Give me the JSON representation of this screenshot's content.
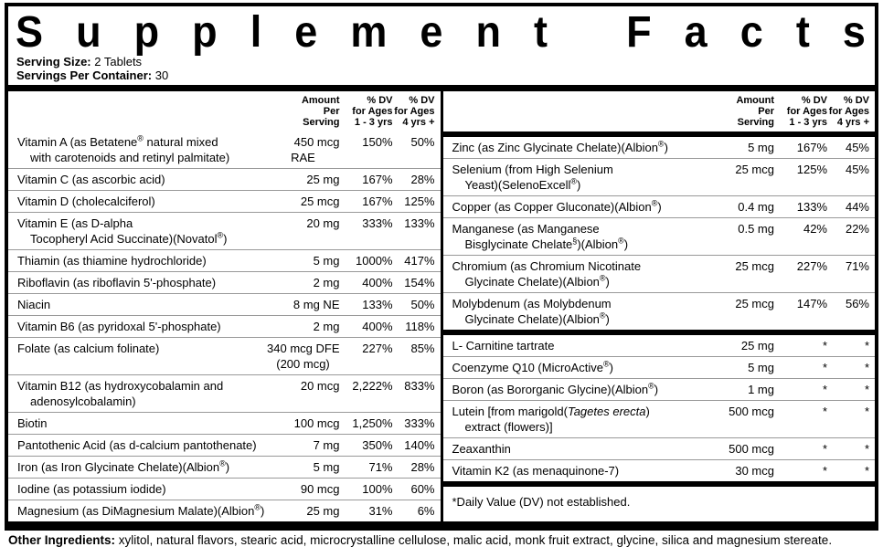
{
  "title": "Supplement Facts",
  "serving": {
    "size_label": "Serving Size:",
    "size_value": " 2 Tablets",
    "container_label": "Servings Per Container:",
    "container_value": " 30"
  },
  "columns_header": {
    "amount": "Amount\nPer\nServing",
    "dv1": "% DV\nfor Ages\n1 - 3  yrs",
    "dv2": "% DV\nfor Ages\n4 yrs +"
  },
  "left_rows": [
    {
      "name": "Vitamin A (as Betatene® natural mixed",
      "name2": "with carotenoids and retinyl palmitate)",
      "amount": "450 mcg",
      "amount2": "RAE",
      "dv1": "150%",
      "dv2": "50%"
    },
    {
      "name": "Vitamin C (as ascorbic acid)",
      "amount": "25 mg",
      "dv1": "167%",
      "dv2": "28%"
    },
    {
      "name": "Vitamin D (cholecalciferol)",
      "amount": "25 mcg",
      "dv1": "167%",
      "dv2": "125%"
    },
    {
      "name": "Vitamin E (as D-alpha",
      "name2": "Tocopheryl Acid Succinate)(Novatol®)",
      "amount": "20 mg",
      "dv1": "333%",
      "dv2": "133%"
    },
    {
      "name": "Thiamin (as thiamine hydrochloride)",
      "amount": "5 mg",
      "dv1": "1000%",
      "dv2": "417%"
    },
    {
      "name": "Riboflavin (as riboflavin 5'-phosphate)",
      "amount": "2 mg",
      "dv1": "400%",
      "dv2": "154%"
    },
    {
      "name": "Niacin",
      "amount": "8 mg NE",
      "dv1": "133%",
      "dv2": "50%"
    },
    {
      "name": "Vitamin B6 (as pyridoxal 5'-phosphate)",
      "amount": "2 mg",
      "dv1": "400%",
      "dv2": "118%"
    },
    {
      "name": "Folate (as calcium folinate)",
      "amount": "340 mcg DFE",
      "amount2": "(200 mcg)",
      "dv1": "227%",
      "dv2": "85%"
    },
    {
      "name": "Vitamin B12 (as hydroxycobalamin and",
      "name2": "adenosylcobalamin)",
      "amount": "20 mcg",
      "dv1": "2,222%",
      "dv2": "833%"
    },
    {
      "name": "Biotin",
      "amount": "100 mcg",
      "dv1": "1,250%",
      "dv2": "333%"
    },
    {
      "name": "Pantothenic Acid (as d-calcium pantothenate)",
      "amount": "7 mg",
      "dv1": "350%",
      "dv2": "140%"
    },
    {
      "name": "Iron (as Iron Glycinate Chelate)(Albion®)",
      "amount": "5 mg",
      "dv1": "71%",
      "dv2": "28%"
    },
    {
      "name": "Iodine (as potassium iodide)",
      "amount": "90 mcg",
      "dv1": "100%",
      "dv2": "60%"
    },
    {
      "name": "Magnesium (as DiMagnesium Malate)(Albion®)",
      "amount": "25 mg",
      "dv1": "31%",
      "dv2": "6%"
    }
  ],
  "right_rows_top": [
    {
      "name": "Zinc (as Zinc Glycinate Chelate)(Albion®)",
      "amount": "5 mg",
      "dv1": "167%",
      "dv2": "45%"
    },
    {
      "name": "Selenium (from High Selenium",
      "name2": "Yeast)(SelenoExcell®)",
      "amount": "25 mcg",
      "dv1": "125%",
      "dv2": "45%"
    },
    {
      "name": "Copper (as Copper Gluconate)(Albion®)",
      "amount": "0.4 mg",
      "dv1": "133%",
      "dv2": "44%"
    },
    {
      "name": "Manganese (as Manganese",
      "name2": "Bisglycinate Chelate§)(Albion®)",
      "amount": "0.5 mg",
      "dv1": "42%",
      "dv2": "22%"
    },
    {
      "name": "Chromium (as Chromium Nicotinate",
      "name2": "Glycinate Chelate)(Albion®)",
      "amount": "25 mcg",
      "dv1": "227%",
      "dv2": "71%"
    },
    {
      "name": "Molybdenum (as Molybdenum",
      "name2": "Glycinate Chelate)(Albion®)",
      "amount": "25 mcg",
      "dv1": "147%",
      "dv2": "56%"
    }
  ],
  "right_rows_bottom": [
    {
      "name": "L- Carnitine tartrate",
      "amount": "25 mg",
      "dv1": "*",
      "dv2": "*"
    },
    {
      "name": "Coenzyme Q10 (MicroActive®)",
      "amount": "5 mg",
      "dv1": "*",
      "dv2": "*"
    },
    {
      "name": "Boron (as Bororganic Glycine)(Albion®)",
      "amount": "1 mg",
      "dv1": "*",
      "dv2": "*"
    },
    {
      "name": "Lutein [from marigold(Tagetes erecta)",
      "italic": "Tagetes erecta",
      "name2": "extract (flowers)]",
      "amount": "500 mcg",
      "dv1": "*",
      "dv2": "*"
    },
    {
      "name": "Zeaxanthin",
      "amount": "500 mcg",
      "dv1": "*",
      "dv2": "*"
    },
    {
      "name": "Vitamin K2 (as menaquinone-7)",
      "amount": "30 mcg",
      "dv1": "*",
      "dv2": "*"
    }
  ],
  "footnote": "*Daily Value (DV) not established.",
  "other_ingredients": {
    "label": "Other Ingredients:",
    "text": " xylitol, natural flavors, stearic acid, microcrystalline cellulose, malic acid, monk fruit extract, glycine, silica and magnesium stereate."
  }
}
